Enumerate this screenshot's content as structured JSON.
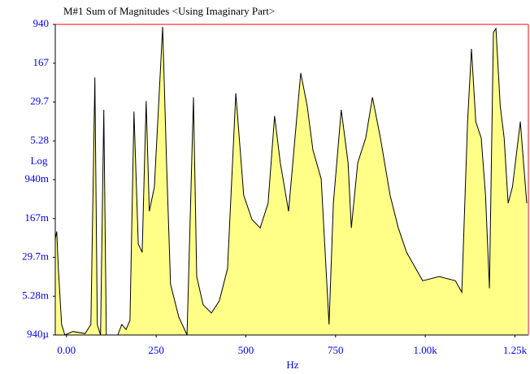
{
  "chart_data": {
    "type": "area",
    "title": "M#1 Sum of Magnitudes <Using Imaginary Part>",
    "xlabel": "Hz",
    "ylabel": "Log",
    "yscale": "log",
    "fill_color": "#ffff88",
    "line_color": "#000000",
    "xlim": [
      -31.25,
      1287.5
    ],
    "ylim": [
      0.00094,
      940
    ],
    "xticks": [
      {
        "value": 0,
        "label": "0.00"
      },
      250,
      500,
      750,
      {
        "value": 1000,
        "label": "1.00k"
      },
      {
        "value": 1250,
        "label": "1.25k"
      }
    ],
    "yticks": [
      940,
      167,
      29.7,
      5.28,
      {
        "value": 0.94,
        "label": "940m"
      },
      {
        "value": 0.167,
        "label": "167m"
      },
      {
        "value": 0.0297,
        "label": "29.7m"
      },
      {
        "value": 0.00528,
        "label": "5.28m"
      },
      {
        "value": 0.00094,
        "label": "940µ"
      }
    ],
    "x": [
      -31.7,
      -27.2,
      -22.7,
      -13.6,
      -4.5,
      18,
      52,
      68,
      79,
      86,
      95,
      104,
      111,
      143,
      154,
      166,
      177,
      188,
      200,
      211,
      222,
      231,
      245,
      268,
      279,
      290,
      313,
      336,
      354,
      363,
      381,
      404,
      426,
      449,
      472,
      494,
      517,
      540,
      562,
      580,
      596,
      619,
      642,
      653,
      671,
      687,
      710,
      732,
      744,
      766,
      785,
      794,
      812,
      834,
      853,
      875,
      902,
      925,
      948,
      993,
      1039,
      1084,
      1102,
      1118,
      1129,
      1141,
      1156,
      1168,
      1179,
      1190,
      1197,
      1209,
      1220,
      1231,
      1243,
      1265,
      1283
    ],
    "values": [
      0.065,
      0.094,
      0.018,
      0.0015,
      0.00094,
      0.0011,
      0.001,
      0.0015,
      89,
      0.0015,
      0.00094,
      21,
      0.00094,
      0.00094,
      0.0015,
      0.0012,
      0.0018,
      19.5,
      0.054,
      0.037,
      31,
      0.23,
      0.68,
      843,
      2.0,
      0.009,
      0.0021,
      0.00094,
      36.6,
      0.0126,
      0.0036,
      0.0025,
      0.0043,
      0.018,
      44,
      0.47,
      0.16,
      0.11,
      0.33,
      16,
      2.0,
      0.23,
      15,
      108,
      25,
      3.5,
      0.98,
      0.0015,
      0.33,
      21,
      2.0,
      0.11,
      2.0,
      6.0,
      36.6,
      6.0,
      0.47,
      0.11,
      0.037,
      0.0105,
      0.0126,
      0.0105,
      0.0063,
      12.4,
      318,
      12.4,
      6.0,
      0.47,
      0.0075,
      654,
      784,
      25,
      6.0,
      0.33,
      0.68,
      12.4,
      0.33
    ]
  }
}
